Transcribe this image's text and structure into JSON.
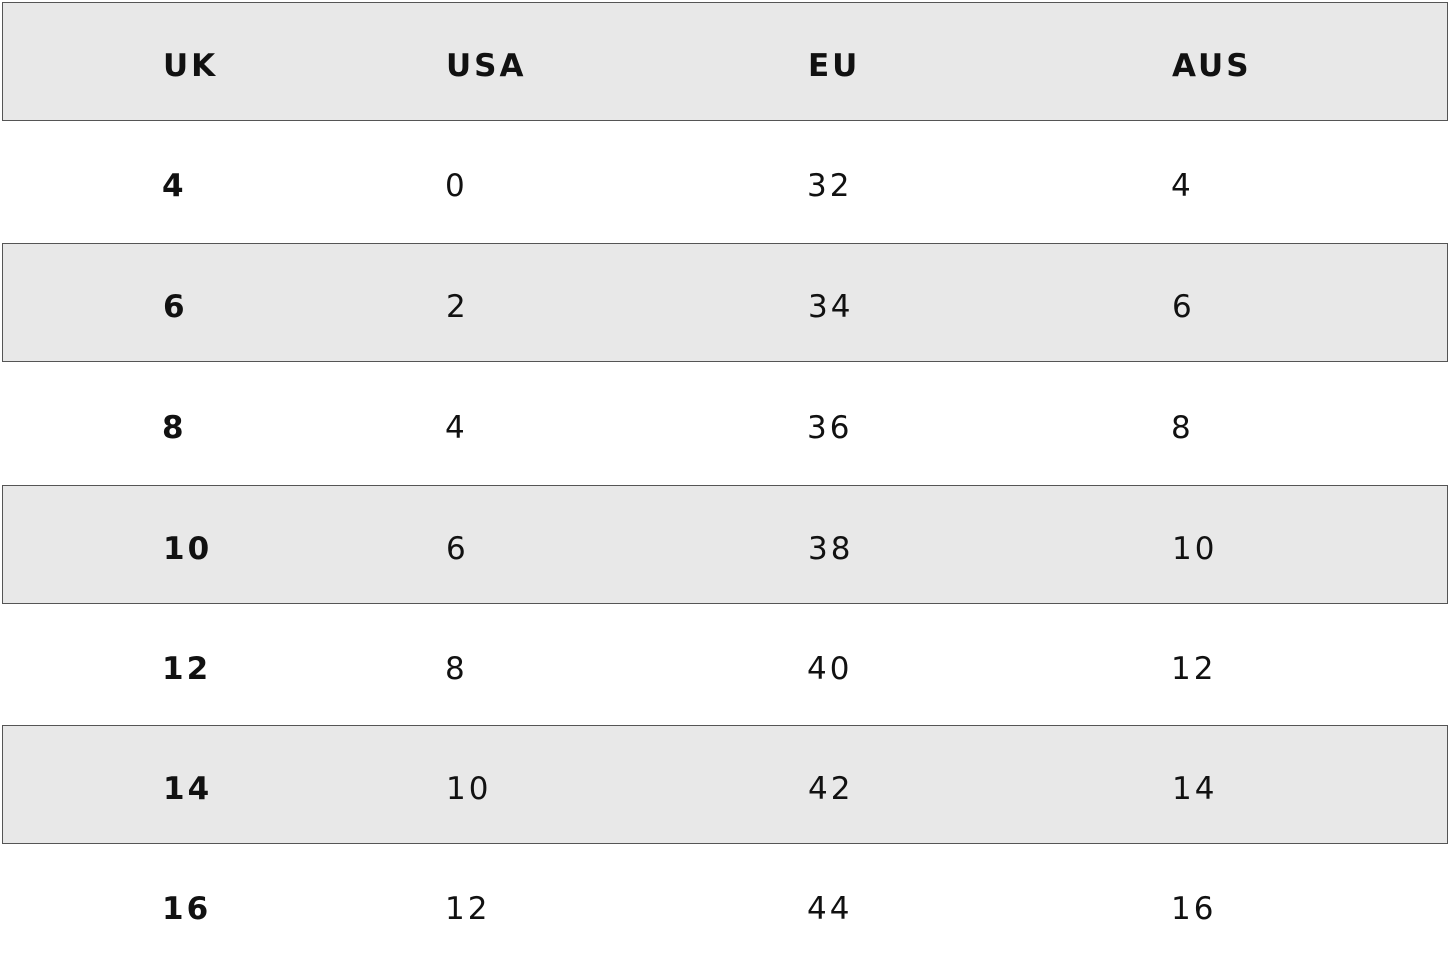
{
  "table": {
    "header": [
      "UK",
      "USA",
      "EU",
      "AUS"
    ],
    "rows": [
      [
        4,
        0,
        32,
        4
      ],
      [
        6,
        2,
        34,
        6
      ],
      [
        8,
        4,
        36,
        8
      ],
      [
        10,
        6,
        38,
        10
      ],
      [
        12,
        8,
        40,
        12
      ],
      [
        14,
        10,
        42,
        14
      ],
      [
        16,
        12,
        44,
        16
      ]
    ]
  }
}
